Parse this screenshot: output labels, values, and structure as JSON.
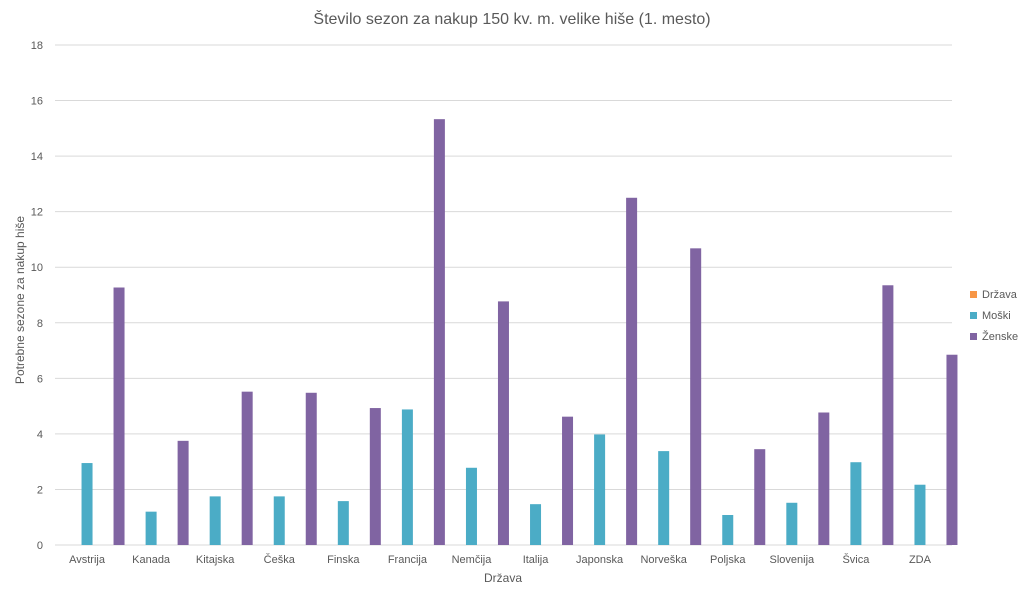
{
  "chart_data": {
    "type": "bar",
    "title": "Število sezon za nakup 150 kv. m. velike hiše (1. mesto)",
    "xlabel": "Država",
    "ylabel": "Potrebne sezone za nakup hiše",
    "ylim": [
      0,
      18
    ],
    "ytick_step": 2,
    "grid": true,
    "legend_position": "right",
    "categories": [
      "Avstrija",
      "Kanada",
      "Kitajska",
      "Češka",
      "Finska",
      "Francija",
      "Nemčija",
      "Italija",
      "Japonska",
      "Norveška",
      "Poljska",
      "Slovenija",
      "Švica",
      "ZDA"
    ],
    "series": [
      {
        "name": "Država",
        "color": "#F79646",
        "values": [
          0,
          0,
          0,
          0,
          0,
          0,
          0,
          0,
          0,
          0,
          0,
          0,
          0,
          0
        ]
      },
      {
        "name": "Moški",
        "color": "#4BACC6",
        "values": [
          2.95,
          1.2,
          1.75,
          1.75,
          1.58,
          4.88,
          2.78,
          1.47,
          3.98,
          3.38,
          1.08,
          1.52,
          2.98,
          2.17
        ]
      },
      {
        "name": "Ženske",
        "color": "#8064A2",
        "values": [
          9.27,
          3.75,
          5.52,
          5.48,
          4.93,
          15.33,
          8.77,
          4.62,
          12.5,
          10.68,
          3.45,
          4.77,
          9.35,
          6.85
        ]
      }
    ]
  }
}
